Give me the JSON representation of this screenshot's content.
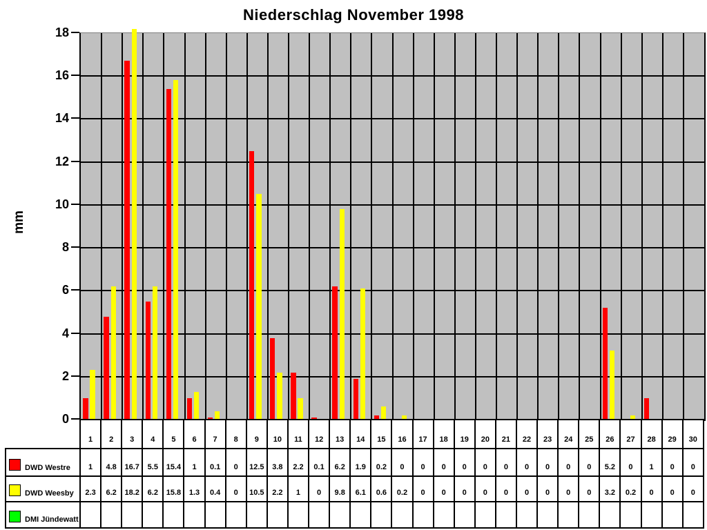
{
  "chart_data": {
    "type": "bar",
    "title": "Niederschlag November 1998",
    "ylabel": "mm",
    "xlabel": "",
    "ylim": [
      0,
      18
    ],
    "y_tick_step": 2,
    "grid": true,
    "plot_bg": "#c0c0c0",
    "gridline_color": "#000000",
    "legend_position": "table-left",
    "categories": [
      1,
      2,
      3,
      4,
      5,
      6,
      7,
      8,
      9,
      10,
      11,
      12,
      13,
      14,
      15,
      16,
      17,
      18,
      19,
      20,
      21,
      22,
      23,
      24,
      25,
      26,
      27,
      28,
      29,
      30
    ],
    "series": [
      {
        "name": "DWD Westre",
        "color": "#ff0000",
        "values": [
          1,
          4.8,
          16.7,
          5.5,
          15.4,
          1,
          0.1,
          0,
          12.5,
          3.8,
          2.2,
          0.1,
          6.2,
          1.9,
          0.2,
          0,
          0,
          0,
          0,
          0,
          0,
          0,
          0,
          0,
          0,
          5.2,
          0,
          1,
          0,
          0
        ]
      },
      {
        "name": "DWD Weesby",
        "color": "#ffff00",
        "values": [
          2.3,
          6.2,
          18.2,
          6.2,
          15.8,
          1.3,
          0.4,
          0,
          10.5,
          2.2,
          1,
          0,
          9.8,
          6.1,
          0.6,
          0.2,
          0,
          0,
          0,
          0,
          0,
          0,
          0,
          0,
          0,
          3.2,
          0.2,
          0,
          0,
          0
        ]
      },
      {
        "name": "DMI Jündewatt",
        "color": "#00ff00",
        "values": []
      }
    ]
  }
}
